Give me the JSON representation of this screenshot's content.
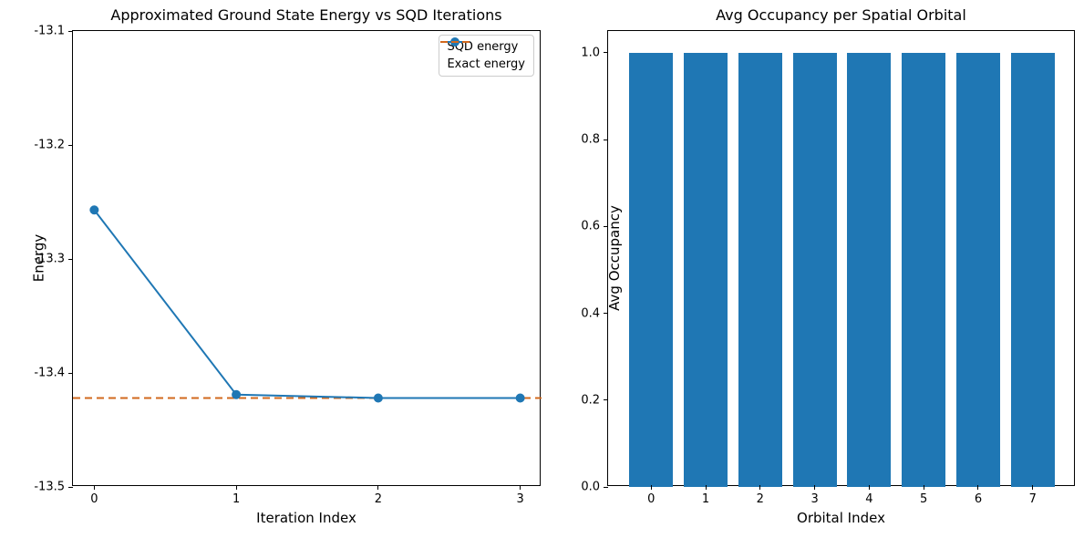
{
  "figure": {
    "background": "#ffffff",
    "spine_color": "#000000",
    "text_color": "#000000"
  },
  "chart_data": [
    {
      "type": "line",
      "title": "Approximated Ground State Energy vs SQD Iterations",
      "xlabel": "Iteration Index",
      "ylabel": "Energy",
      "x": [
        0,
        1,
        2,
        3
      ],
      "series": [
        {
          "name": "SQD energy",
          "values": [
            -13.257,
            -13.419,
            -13.422,
            -13.422
          ],
          "color": "#1f77b4",
          "style": "solid-with-circle-markers"
        }
      ],
      "reference_line": {
        "name": "Exact energy",
        "value": -13.422,
        "color": "#d2691e",
        "style": "dashed"
      },
      "xlim": [
        -0.15,
        3.15
      ],
      "ylim": [
        -13.5,
        -13.1
      ],
      "xticks": [
        0,
        1,
        2,
        3
      ],
      "xtick_labels": [
        "0",
        "1",
        "2",
        "3"
      ],
      "yticks": [
        -13.1,
        -13.2,
        -13.3,
        -13.4,
        -13.5
      ],
      "ytick_labels": [
        "-13.1",
        "-13.2",
        "-13.3",
        "-13.4",
        "-13.5"
      ],
      "grid": false,
      "legend_position": "upper right"
    },
    {
      "type": "bar",
      "title": "Avg Occupancy per Spatial Orbital",
      "xlabel": "Orbital Index",
      "ylabel": "Avg Occupancy",
      "categories": [
        "0",
        "1",
        "2",
        "3",
        "4",
        "5",
        "6",
        "7"
      ],
      "values": [
        1.0,
        1.0,
        1.0,
        1.0,
        1.0,
        1.0,
        1.0,
        1.0
      ],
      "bar_color": "#1f77b4",
      "bar_width": 0.8,
      "xlim": [
        -0.79,
        7.79
      ],
      "ylim": [
        0,
        1.05
      ],
      "yticks": [
        0.0,
        0.2,
        0.4,
        0.6,
        0.8,
        1.0
      ],
      "ytick_labels": [
        "0.0",
        "0.2",
        "0.4",
        "0.6",
        "0.8",
        "1.0"
      ],
      "grid": false
    }
  ]
}
